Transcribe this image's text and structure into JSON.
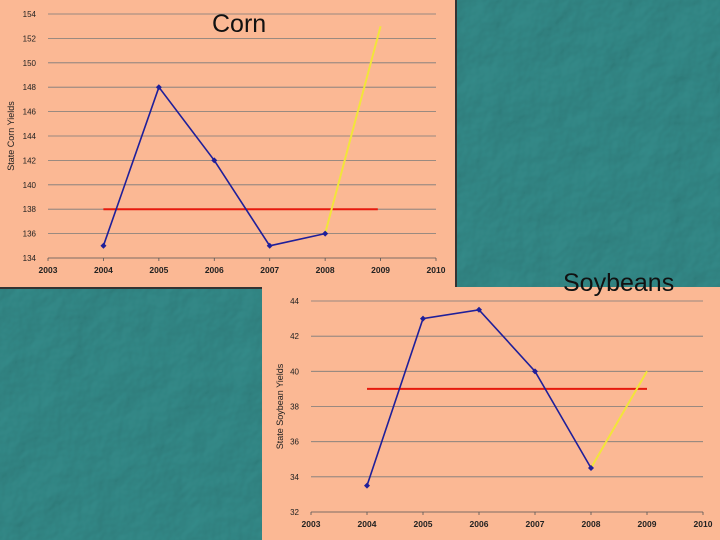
{
  "colors": {
    "background": "#2E7F7E",
    "panel": "#FBB894",
    "series_line": "#1F1F9A",
    "average_line": "#E61A0E",
    "projection_line": "#F2E53A",
    "grid": "#7A7A7A"
  },
  "chart_data": [
    {
      "type": "line",
      "title": "Corn",
      "xlabel": "",
      "ylabel": "State Corn Yields",
      "xlim": [
        2003,
        2010
      ],
      "ylim": [
        134,
        154
      ],
      "x_ticks": [
        "2003",
        "2004",
        "2005",
        "2006",
        "2007",
        "2008",
        "2009",
        "2010"
      ],
      "y_ticks": [
        "134",
        "136",
        "138",
        "140",
        "142",
        "144",
        "146",
        "148",
        "150",
        "152",
        "154"
      ],
      "grid": "horizontal",
      "series": [
        {
          "role": "yields",
          "x": [
            2004,
            2005,
            2006,
            2007,
            2008
          ],
          "y": [
            135,
            148,
            142,
            135,
            136
          ]
        },
        {
          "role": "average",
          "x": [
            2004,
            2008.95
          ],
          "y": [
            138,
            138
          ]
        },
        {
          "role": "projection",
          "x": [
            2008,
            2009
          ],
          "y": [
            136,
            153
          ]
        }
      ]
    },
    {
      "type": "line",
      "title": "Soybeans",
      "xlabel": "",
      "ylabel": "State Soybean Yields",
      "xlim": [
        2003,
        2010
      ],
      "ylim": [
        32,
        44
      ],
      "x_ticks": [
        "2003",
        "2004",
        "2005",
        "2006",
        "2007",
        "2008",
        "2009",
        "2010"
      ],
      "y_ticks": [
        "32",
        "34",
        "36",
        "38",
        "40",
        "42",
        "44"
      ],
      "grid": "horizontal",
      "series": [
        {
          "role": "yields",
          "x": [
            2004,
            2005,
            2006,
            2007,
            2008
          ],
          "y": [
            33.5,
            43,
            43.5,
            40,
            34.5
          ]
        },
        {
          "role": "average",
          "x": [
            2004,
            2009
          ],
          "y": [
            39,
            39
          ]
        },
        {
          "role": "projection",
          "x": [
            2008,
            2009
          ],
          "y": [
            34.5,
            40
          ]
        }
      ]
    }
  ]
}
